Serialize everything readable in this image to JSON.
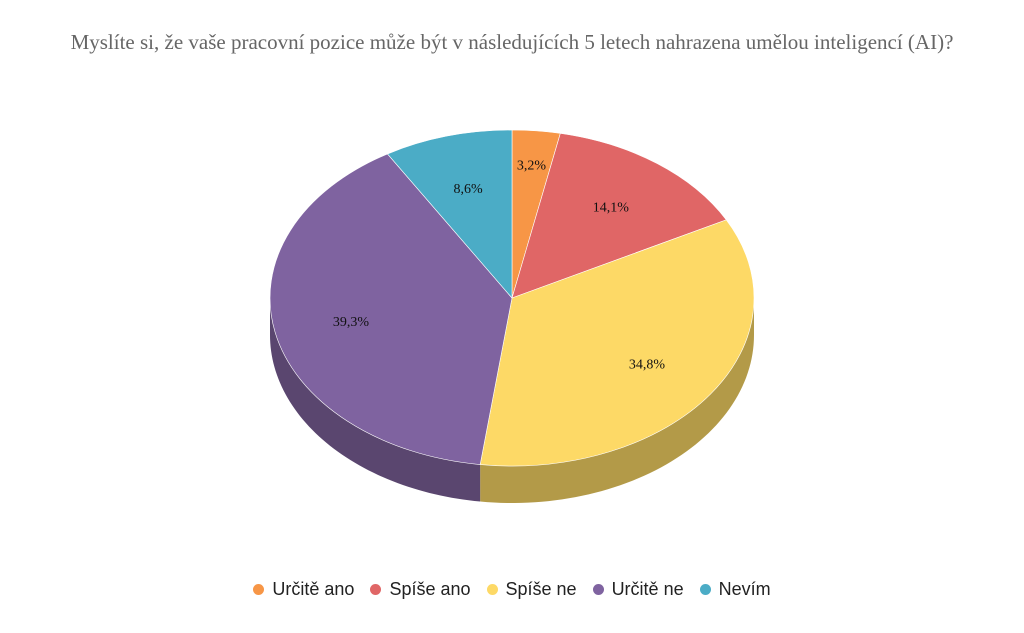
{
  "chart_data": {
    "type": "pie",
    "title": "Myslíte si, že vaše pracovní pozice může být v následujících 5 letech nahrazena umělou inteligencí (AI)?",
    "style": "3d",
    "legend_position": "bottom",
    "slices": [
      {
        "label": "Určitě ano",
        "value": 3.2,
        "value_label": "3,2%",
        "color": "#F79646",
        "side_color": "#B26C32"
      },
      {
        "label": "Spíše ano",
        "value": 14.1,
        "value_label": "14,1%",
        "color": "#E06666",
        "side_color": "#A14A4A"
      },
      {
        "label": "Spíše ne",
        "value": 34.8,
        "value_label": "34,8%",
        "color": "#FDD966",
        "side_color": "#B39A48"
      },
      {
        "label": "Určitě ne",
        "value": 39.3,
        "value_label": "39,3%",
        "color": "#7F63A0",
        "side_color": "#5A466F"
      },
      {
        "label": "Nevím",
        "value": 8.6,
        "value_label": "8,6%",
        "color": "#4BACC6",
        "side_color": "#357A8C"
      }
    ]
  }
}
